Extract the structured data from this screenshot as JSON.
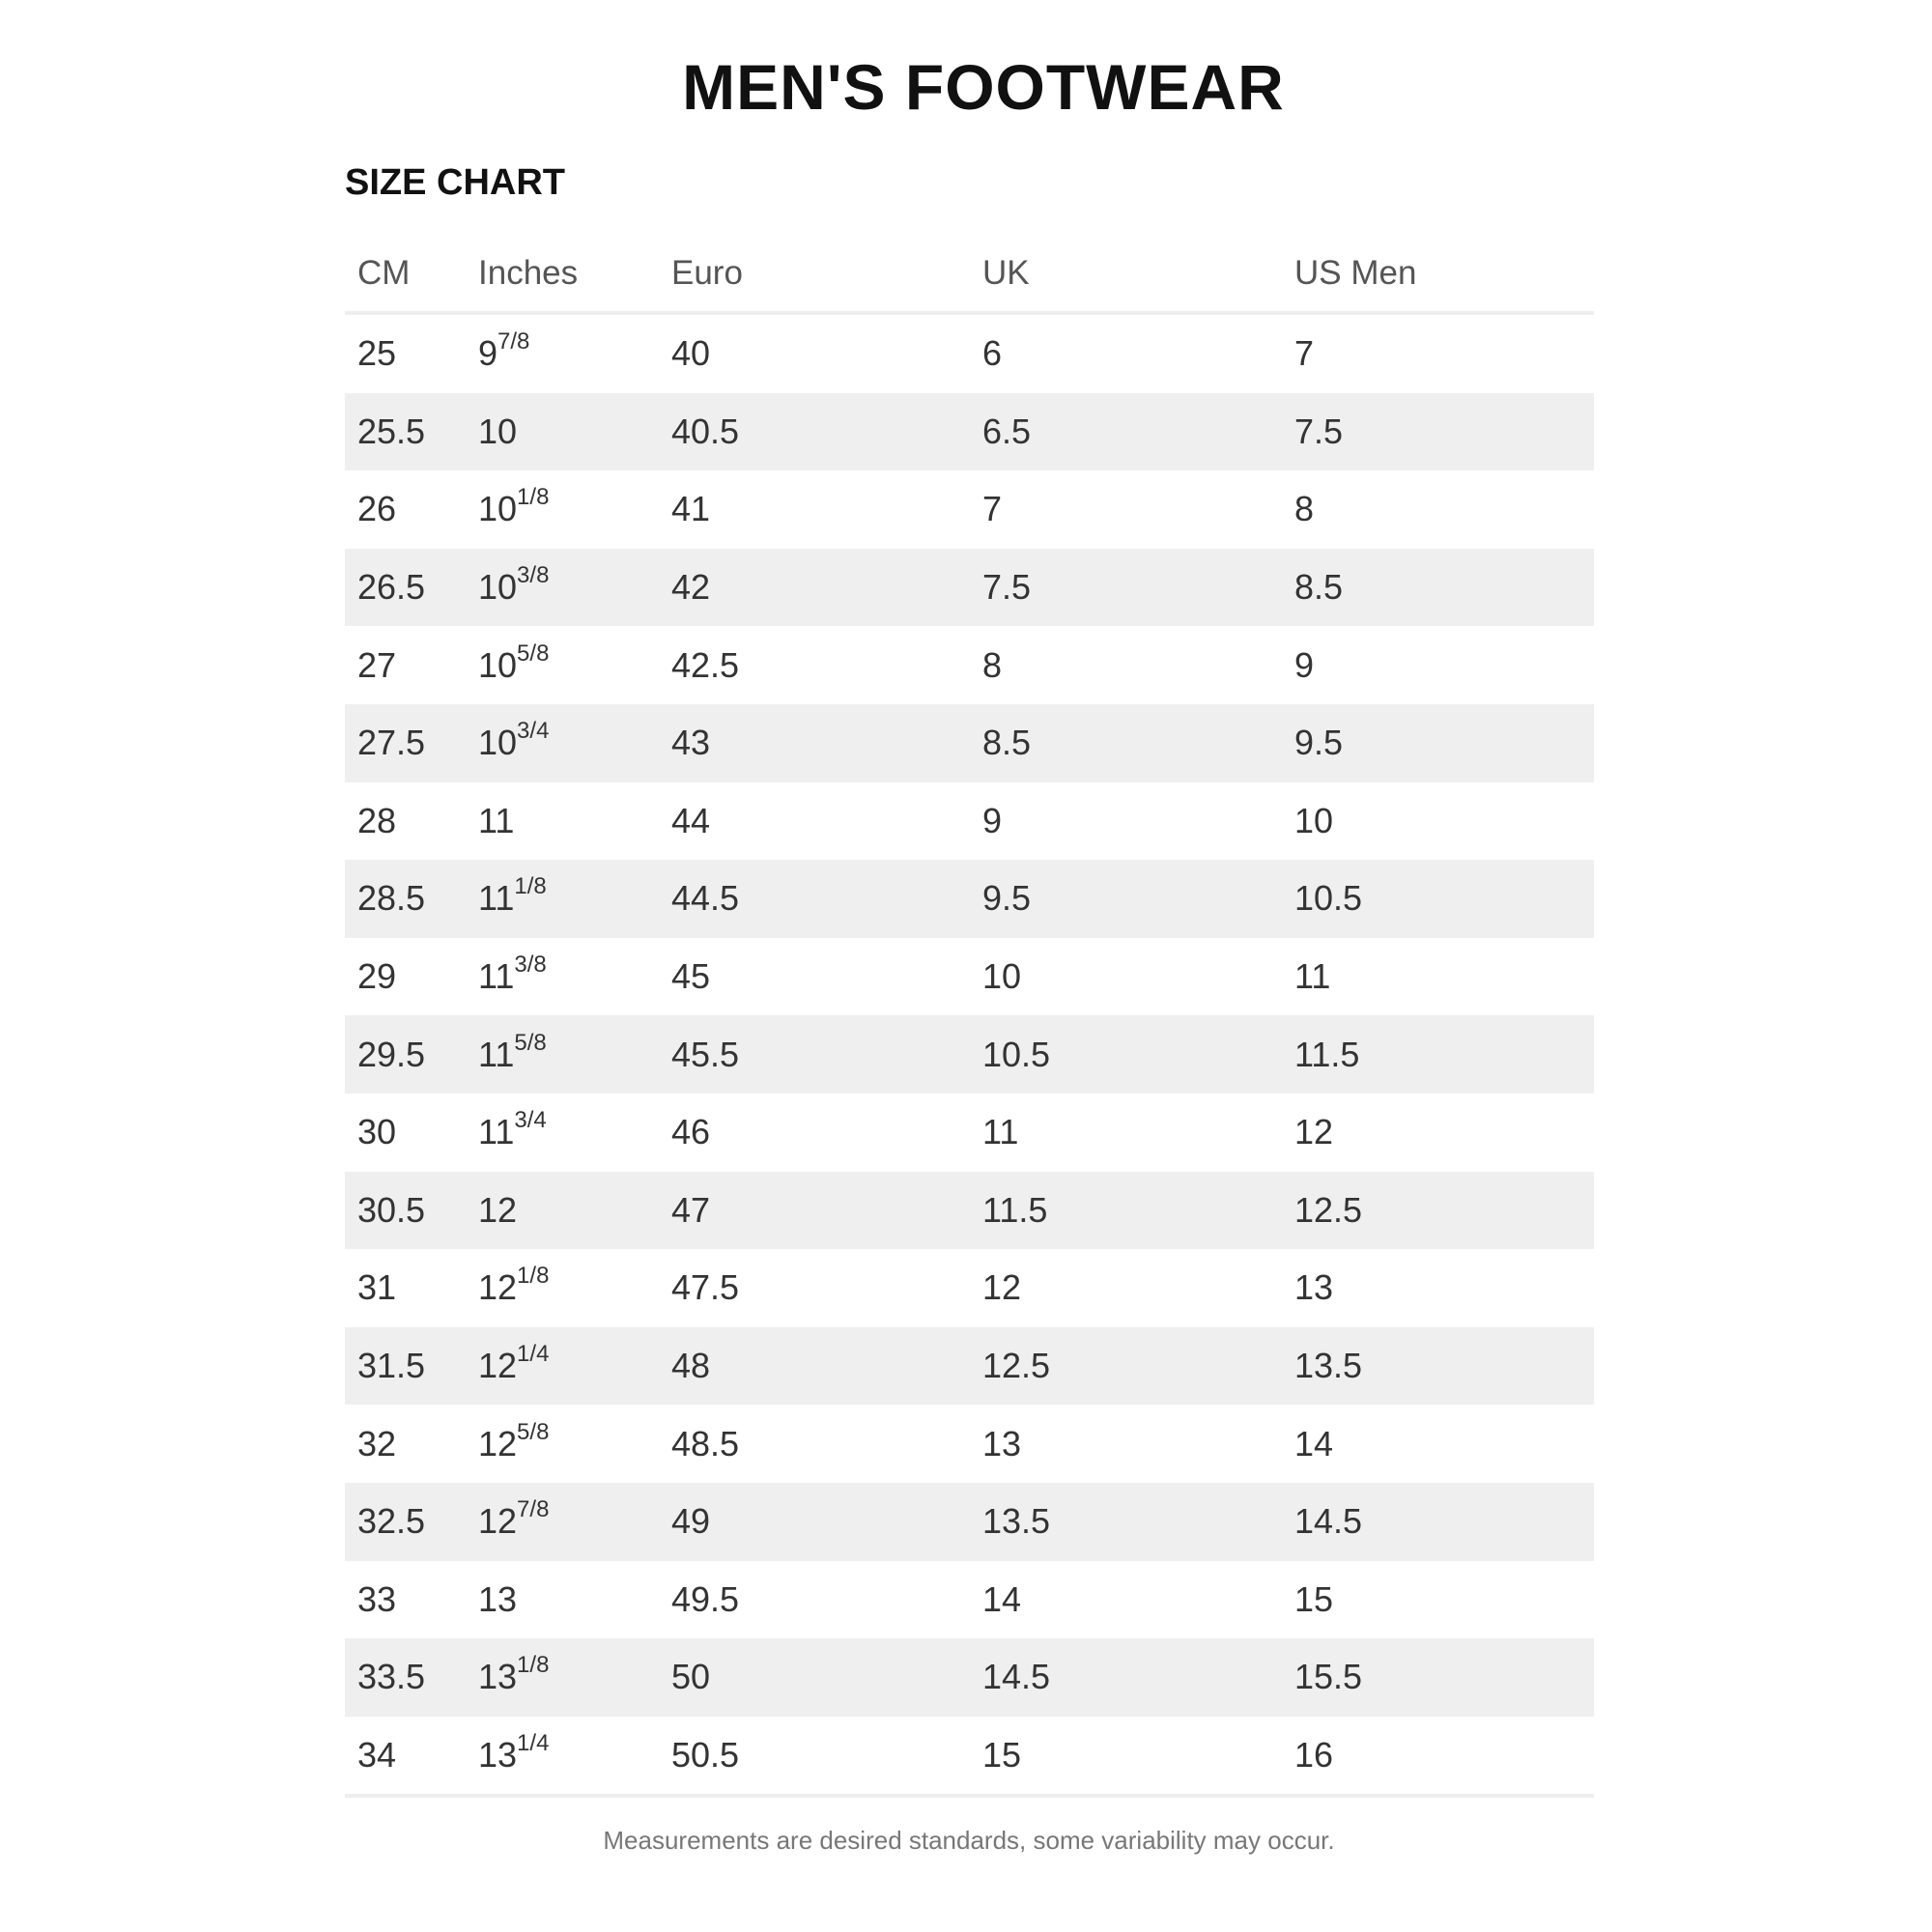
{
  "title": "MEN'S FOOTWEAR",
  "subtitle": "SIZE CHART",
  "columns": [
    "CM",
    "Inches",
    "Euro",
    "UK",
    "US Men"
  ],
  "rows": [
    {
      "cm": "25",
      "in_whole": "9",
      "in_frac": "7/8",
      "euro": "40",
      "uk": "6",
      "us": "7"
    },
    {
      "cm": "25.5",
      "in_whole": "10",
      "in_frac": "",
      "euro": "40.5",
      "uk": "6.5",
      "us": "7.5"
    },
    {
      "cm": "26",
      "in_whole": "10",
      "in_frac": "1/8",
      "euro": "41",
      "uk": "7",
      "us": "8"
    },
    {
      "cm": "26.5",
      "in_whole": "10",
      "in_frac": "3/8",
      "euro": "42",
      "uk": "7.5",
      "us": "8.5"
    },
    {
      "cm": "27",
      "in_whole": "10",
      "in_frac": "5/8",
      "euro": "42.5",
      "uk": "8",
      "us": "9"
    },
    {
      "cm": "27.5",
      "in_whole": "10",
      "in_frac": "3/4",
      "euro": "43",
      "uk": "8.5",
      "us": "9.5"
    },
    {
      "cm": "28",
      "in_whole": "11",
      "in_frac": "",
      "euro": "44",
      "uk": "9",
      "us": "10"
    },
    {
      "cm": "28.5",
      "in_whole": "11",
      "in_frac": "1/8",
      "euro": "44.5",
      "uk": "9.5",
      "us": "10.5"
    },
    {
      "cm": "29",
      "in_whole": "11",
      "in_frac": "3/8",
      "euro": "45",
      "uk": "10",
      "us": "11"
    },
    {
      "cm": "29.5",
      "in_whole": "11",
      "in_frac": "5/8",
      "euro": "45.5",
      "uk": "10.5",
      "us": "11.5"
    },
    {
      "cm": "30",
      "in_whole": "11",
      "in_frac": "3/4",
      "euro": "46",
      "uk": "11",
      "us": "12"
    },
    {
      "cm": "30.5",
      "in_whole": "12",
      "in_frac": "",
      "euro": "47",
      "uk": "11.5",
      "us": "12.5"
    },
    {
      "cm": "31",
      "in_whole": "12",
      "in_frac": "1/8",
      "euro": "47.5",
      "uk": "12",
      "us": "13"
    },
    {
      "cm": "31.5",
      "in_whole": "12",
      "in_frac": "1/4",
      "euro": "48",
      "uk": "12.5",
      "us": "13.5"
    },
    {
      "cm": "32",
      "in_whole": "12",
      "in_frac": "5/8",
      "euro": "48.5",
      "uk": "13",
      "us": "14"
    },
    {
      "cm": "32.5",
      "in_whole": "12",
      "in_frac": "7/8",
      "euro": "49",
      "uk": "13.5",
      "us": "14.5"
    },
    {
      "cm": "33",
      "in_whole": "13",
      "in_frac": "",
      "euro": "49.5",
      "uk": "14",
      "us": "15"
    },
    {
      "cm": "33.5",
      "in_whole": "13",
      "in_frac": "1/8",
      "euro": "50",
      "uk": "14.5",
      "us": "15.5"
    },
    {
      "cm": "34",
      "in_whole": "13",
      "in_frac": "1/4",
      "euro": "50.5",
      "uk": "15",
      "us": "16"
    }
  ],
  "footnote": "Measurements are desired standards, some variability may occur.",
  "colors": {
    "stripe": "#efefef",
    "divider": "#eeeeee",
    "text": "#333333"
  }
}
